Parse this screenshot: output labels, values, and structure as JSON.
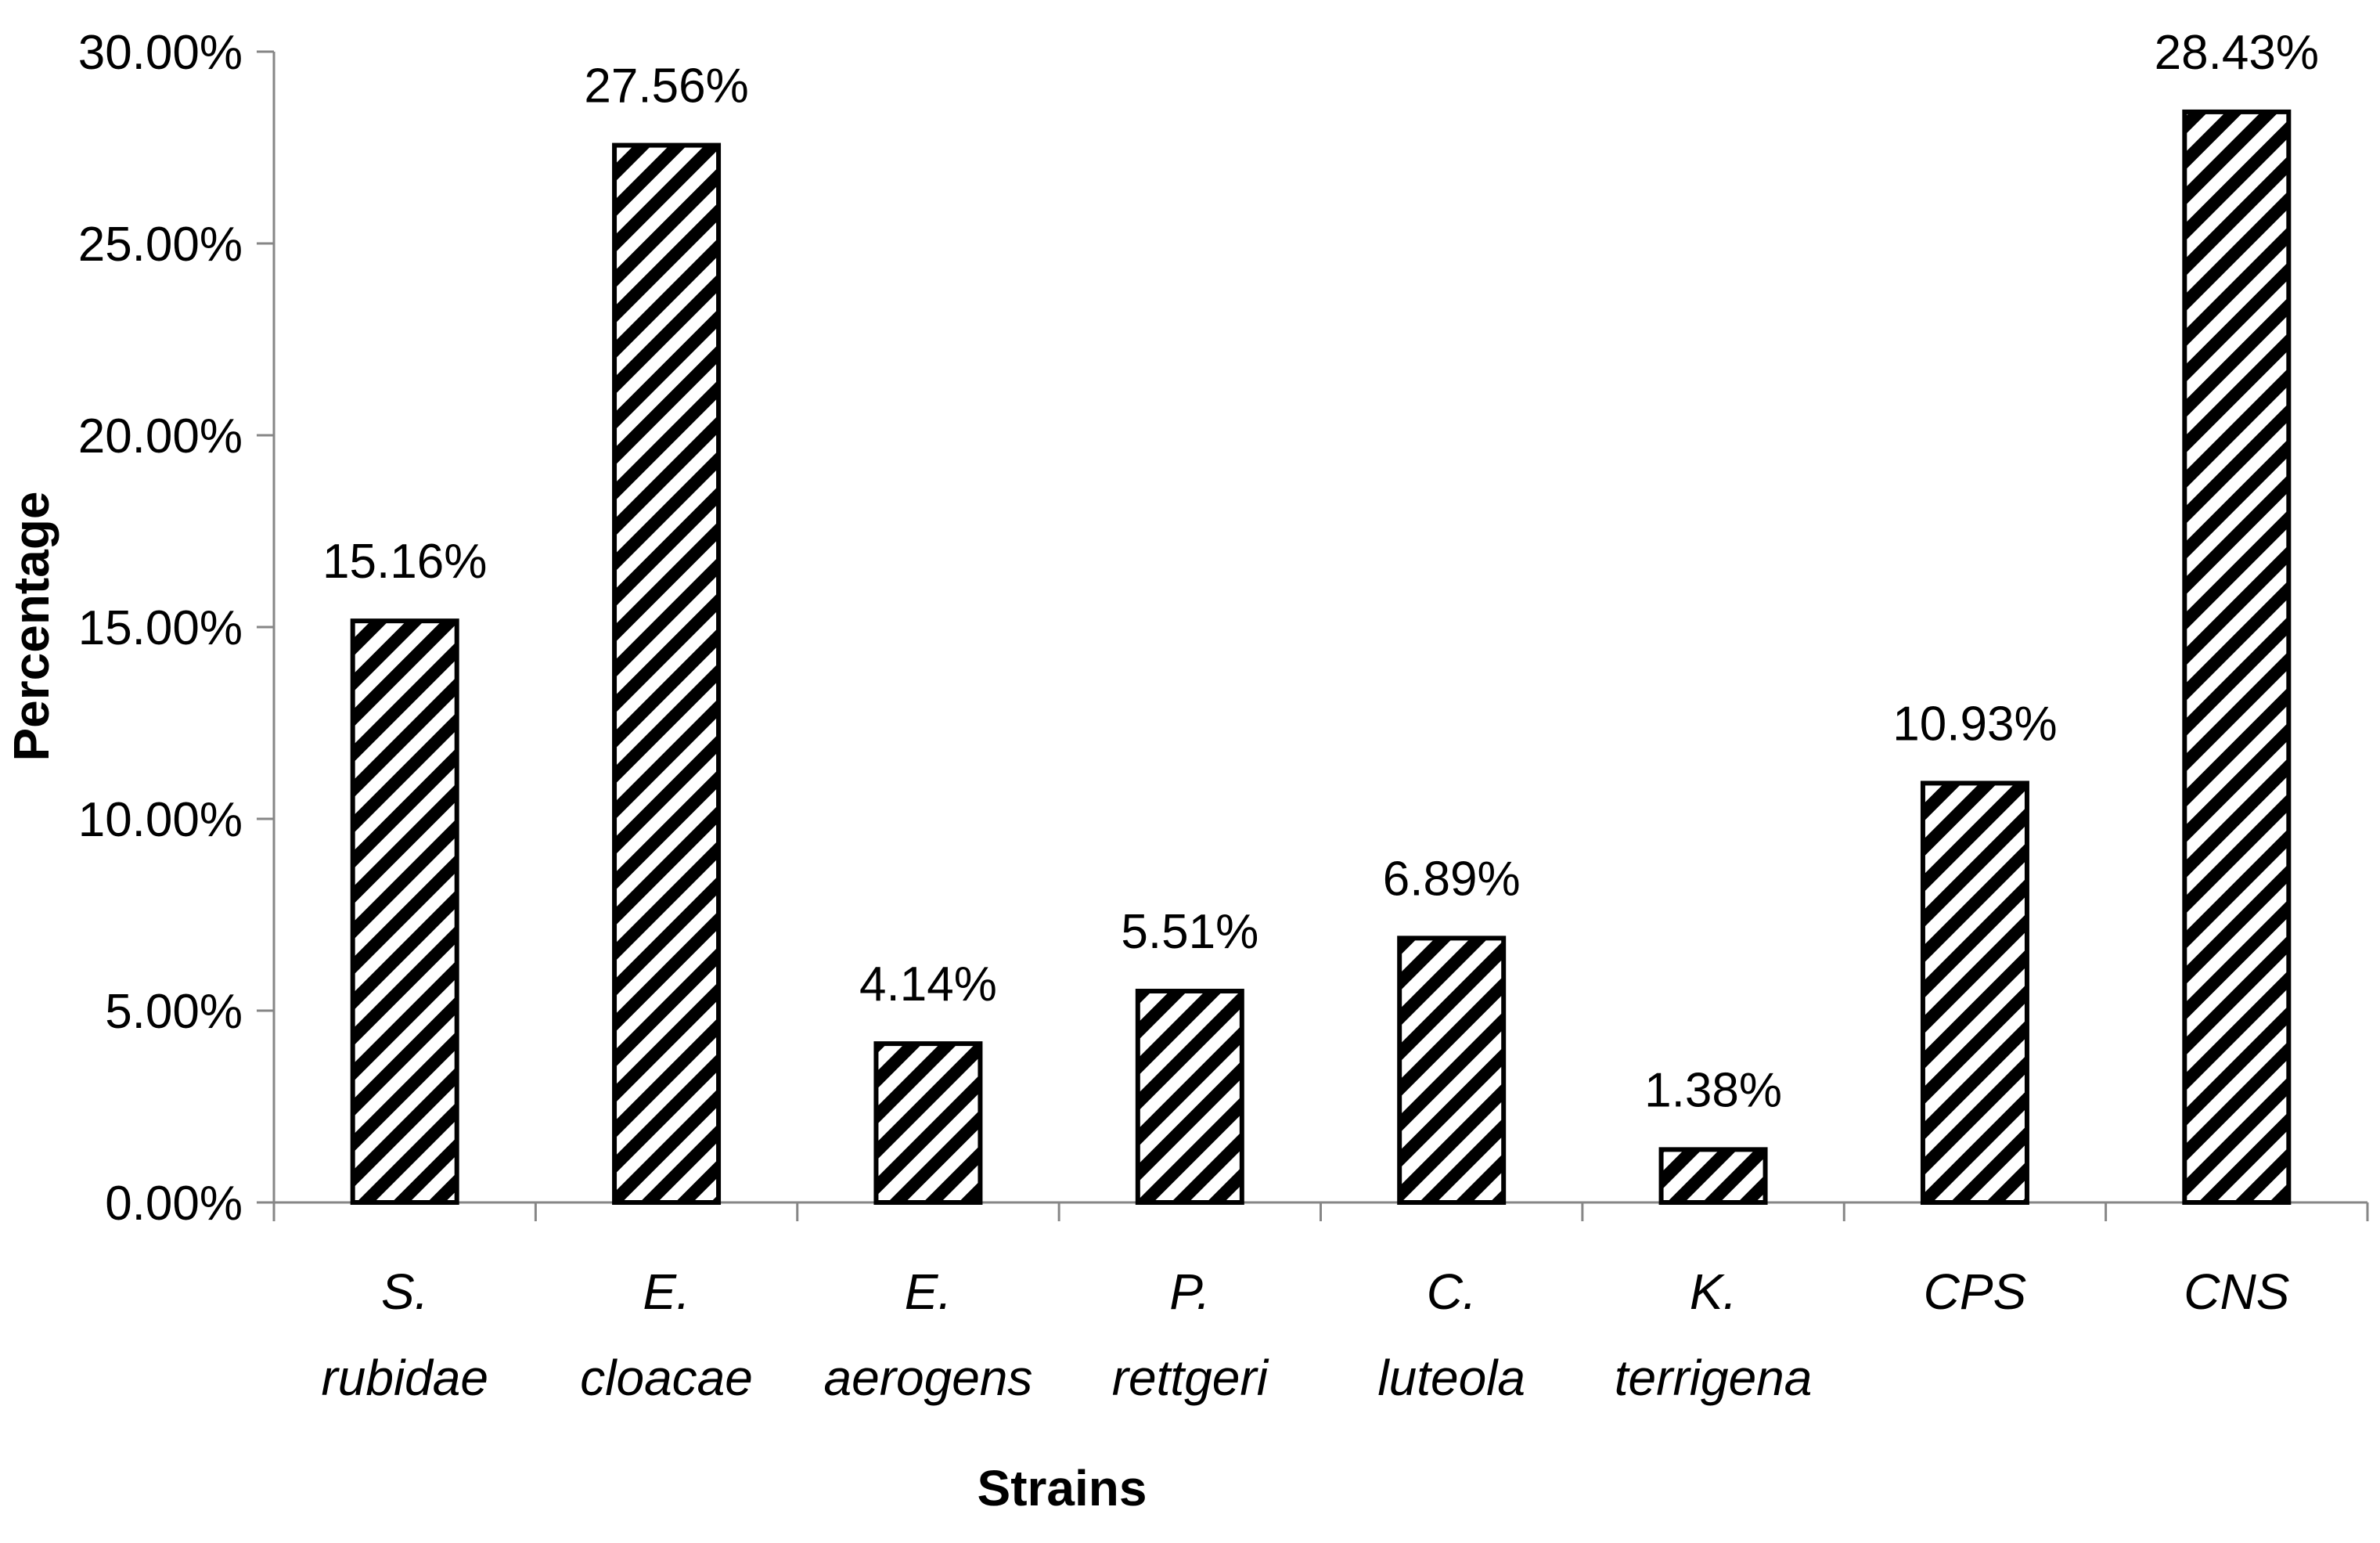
{
  "chart_data": {
    "type": "bar",
    "categories": [
      [
        "S.",
        "rubidae"
      ],
      [
        "E.",
        "cloacae"
      ],
      [
        "E.",
        "aerogens"
      ],
      [
        "P.",
        "rettgeri"
      ],
      [
        "C.",
        "luteola"
      ],
      [
        "K.",
        "terrigena"
      ],
      [
        "CPS"
      ],
      [
        "CNS"
      ]
    ],
    "values": [
      15.16,
      27.56,
      4.14,
      5.51,
      6.89,
      1.38,
      10.93,
      28.43
    ],
    "data_labels": [
      "15.16%",
      "27.56%",
      "4.14%",
      "5.51%",
      "6.89%",
      "1.38%",
      "10.93%",
      "28.43%"
    ],
    "xlabel": "Strains",
    "ylabel": "Percentage",
    "ylim": [
      0,
      30
    ],
    "yticks": [
      0,
      5,
      10,
      15,
      20,
      25,
      30
    ],
    "ytick_labels": [
      "0.00%",
      "5.00%",
      "10.00%",
      "15.00%",
      "20.00%",
      "25.00%",
      "30.00%"
    ],
    "grid": false,
    "legend": "none",
    "bar_fill_pattern": "diagonal-hatch",
    "bar_color": "#000000",
    "background_color": "#ffffff",
    "axis_color": "#868686"
  }
}
